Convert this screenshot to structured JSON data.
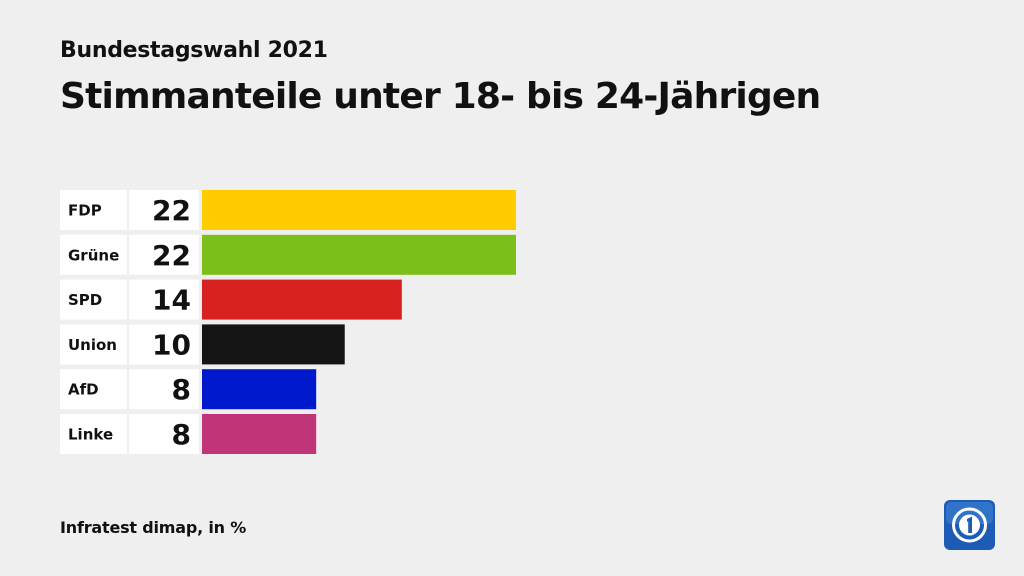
{
  "header": {
    "kicker": "Bundestagswahl 2021",
    "title": "Stimmanteile unter 18- bis 24-Jährigen"
  },
  "footer": {
    "source": "Infratest dimap, in %"
  },
  "logo": {
    "icon": "ard-das-erste-logo-icon",
    "color": "#1d5bb4"
  },
  "chart_data": {
    "type": "bar",
    "orientation": "horizontal",
    "categories": [
      "FDP",
      "Grüne",
      "SPD",
      "Union",
      "AfD",
      "Linke"
    ],
    "values": [
      22,
      22,
      14,
      10,
      8,
      8
    ],
    "value_labels": [
      "22",
      "22",
      "14",
      "10",
      "8",
      "8"
    ],
    "colors": [
      "#ffcc00",
      "#7cbf1b",
      "#d82222",
      "#141414",
      "#0019cc",
      "#bf3577"
    ],
    "title": "Stimmanteile unter 18- bis 24-Jährigen",
    "xlabel": "",
    "ylabel": "",
    "xlim": [
      0,
      22
    ],
    "grid": false,
    "legend": "none"
  }
}
